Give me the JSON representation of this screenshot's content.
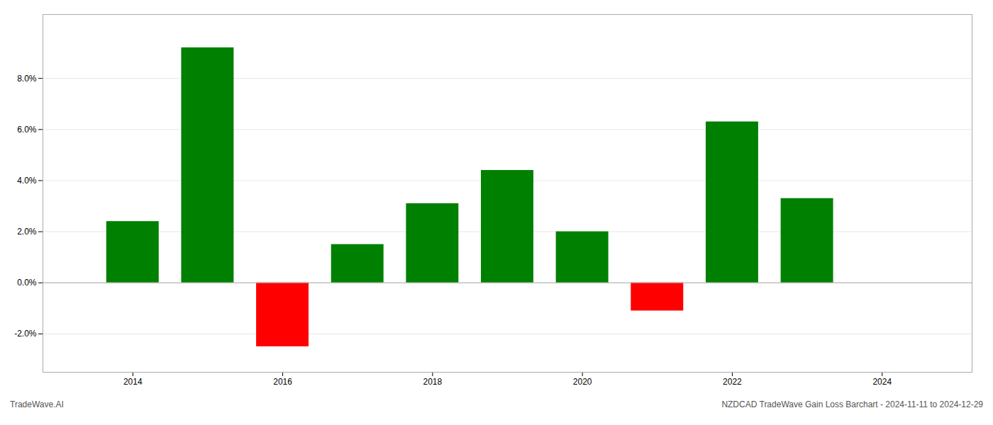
{
  "chart_data": {
    "type": "bar",
    "x": [
      2014,
      2015,
      2016,
      2017,
      2018,
      2019,
      2020,
      2021,
      2022,
      2023
    ],
    "values": [
      0.024,
      0.092,
      -0.025,
      0.015,
      0.031,
      0.044,
      0.02,
      -0.011,
      0.063,
      0.033
    ],
    "colors": [
      "#008000",
      "#008000",
      "#ff0000",
      "#008000",
      "#008000",
      "#008000",
      "#008000",
      "#ff0000",
      "#008000",
      "#008000"
    ],
    "xlim": [
      2012.8,
      2025.2
    ],
    "xticks": [
      2014,
      2016,
      2018,
      2020,
      2022,
      2024
    ],
    "ylim": [
      -0.035,
      0.105
    ],
    "yticks": [
      {
        "value": -0.02,
        "label": "-2.0%"
      },
      {
        "value": 0.0,
        "label": "0.0%"
      },
      {
        "value": 0.02,
        "label": "2.0%"
      },
      {
        "value": 0.04,
        "label": "4.0%"
      },
      {
        "value": 0.06,
        "label": "6.0%"
      },
      {
        "value": 0.08,
        "label": "8.0%"
      }
    ],
    "grid": true,
    "annotations": [
      "TradeWave.AI",
      "NZDCAD TradeWave Gain Loss Barchart - 2024-11-11 to 2024-12-29"
    ]
  }
}
